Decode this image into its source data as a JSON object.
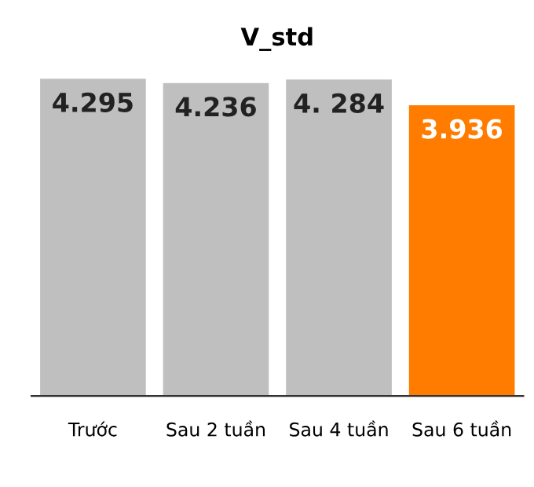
{
  "chart_data": {
    "type": "bar",
    "title": "V_std",
    "categories": [
      "Trước",
      "Sau 2 tuần",
      "Sau 4 tuần",
      "Sau 6 tuần"
    ],
    "values": [
      4.295,
      4.236,
      4.284,
      3.936
    ],
    "value_labels": [
      "4.295",
      "4.236",
      "4. 284",
      "3.936"
    ],
    "colors": [
      "#bfbfbf",
      "#bfbfbf",
      "#bfbfbf",
      "#ff7c00"
    ],
    "grid": false,
    "legend": false
  }
}
